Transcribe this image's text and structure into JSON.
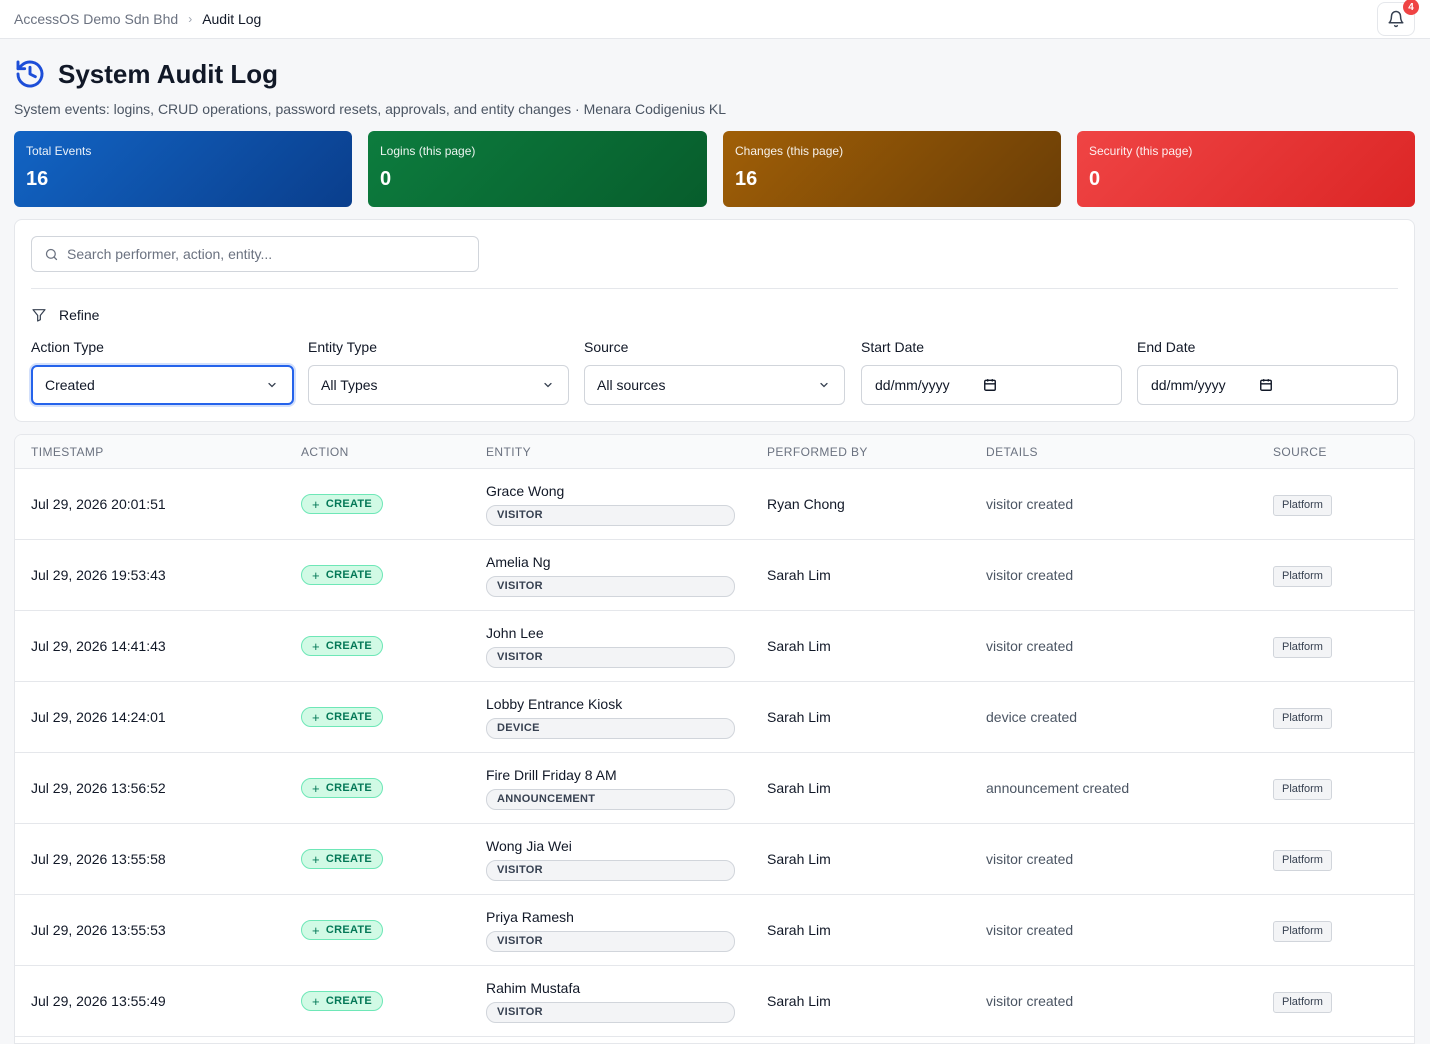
{
  "breadcrumb": {
    "org": "AccessOS Demo Sdn Bhd",
    "current": "Audit Log"
  },
  "notifications": {
    "count": "4"
  },
  "page": {
    "title": "System Audit Log",
    "subtitle": "System events: logins, CRUD operations, password resets, approvals, and entity changes · Menara Codigenius KL"
  },
  "stats": [
    {
      "label": "Total Events",
      "value": "16",
      "color": "#0f4fa8"
    },
    {
      "label": "Logins (this page)",
      "value": "0",
      "color": "#0a6b35"
    },
    {
      "label": "Changes (this page)",
      "value": "16",
      "color": "#8a5206"
    },
    {
      "label": "Security (this page)",
      "value": "0",
      "color": "#e53935"
    }
  ],
  "filters": {
    "search_placeholder": "Search performer, action, entity...",
    "refine_label": "Refine",
    "action_type": {
      "label": "Action Type",
      "value": "Created"
    },
    "entity_type": {
      "label": "Entity Type",
      "value": "All Types"
    },
    "source": {
      "label": "Source",
      "value": "All sources"
    },
    "start_date": {
      "label": "Start Date",
      "value": "dd/mm/yyyy"
    },
    "end_date": {
      "label": "End Date",
      "value": "dd/mm/yyyy"
    }
  },
  "table": {
    "headers": [
      "TIMESTAMP",
      "ACTION",
      "ENTITY",
      "PERFORMED BY",
      "DETAILS",
      "SOURCE"
    ],
    "rows": [
      {
        "timestamp": "Jul 29, 2026 20:01:51",
        "action": "CREATE",
        "entity_name": "Grace Wong",
        "entity_type": "VISITOR",
        "performed_by": "Ryan Chong",
        "details": "visitor created",
        "source": "Platform"
      },
      {
        "timestamp": "Jul 29, 2026 19:53:43",
        "action": "CREATE",
        "entity_name": "Amelia Ng",
        "entity_type": "VISITOR",
        "performed_by": "Sarah Lim",
        "details": "visitor created",
        "source": "Platform"
      },
      {
        "timestamp": "Jul 29, 2026 14:41:43",
        "action": "CREATE",
        "entity_name": "John Lee",
        "entity_type": "VISITOR",
        "performed_by": "Sarah Lim",
        "details": "visitor created",
        "source": "Platform"
      },
      {
        "timestamp": "Jul 29, 2026 14:24:01",
        "action": "CREATE",
        "entity_name": "Lobby Entrance Kiosk",
        "entity_type": "DEVICE",
        "performed_by": "Sarah Lim",
        "details": "device created",
        "source": "Platform"
      },
      {
        "timestamp": "Jul 29, 2026 13:56:52",
        "action": "CREATE",
        "entity_name": "Fire Drill Friday 8 AM",
        "entity_type": "ANNOUNCEMENT",
        "performed_by": "Sarah Lim",
        "details": "announcement created",
        "source": "Platform"
      },
      {
        "timestamp": "Jul 29, 2026 13:55:58",
        "action": "CREATE",
        "entity_name": "Wong Jia Wei",
        "entity_type": "VISITOR",
        "performed_by": "Sarah Lim",
        "details": "visitor created",
        "source": "Platform"
      },
      {
        "timestamp": "Jul 29, 2026 13:55:53",
        "action": "CREATE",
        "entity_name": "Priya Ramesh",
        "entity_type": "VISITOR",
        "performed_by": "Sarah Lim",
        "details": "visitor created",
        "source": "Platform"
      },
      {
        "timestamp": "Jul 29, 2026 13:55:49",
        "action": "CREATE",
        "entity_name": "Rahim Mustafa",
        "entity_type": "VISITOR",
        "performed_by": "Sarah Lim",
        "details": "visitor created",
        "source": "Platform"
      }
    ]
  }
}
